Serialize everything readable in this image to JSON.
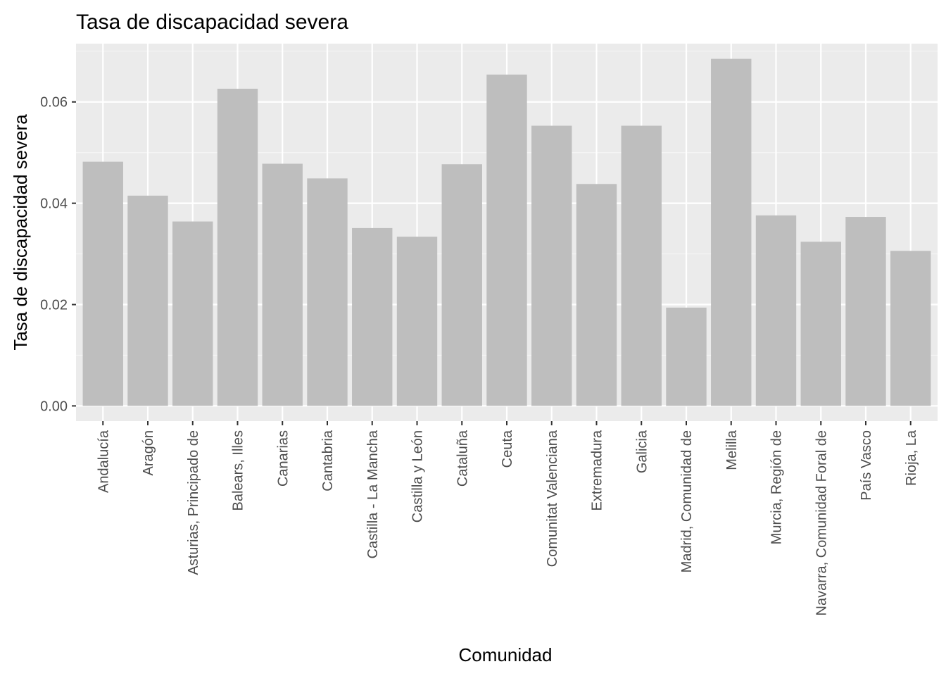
{
  "chart_data": {
    "type": "bar",
    "title": "Tasa de discapacidad severa",
    "xlabel": "Comunidad",
    "ylabel": "Tasa de discapacidad severa",
    "ylim": [
      -0.003,
      0.0715
    ],
    "yticks": [
      0.0,
      0.02,
      0.04,
      0.06
    ],
    "ytick_labels": [
      "0.00",
      "0.02",
      "0.04",
      "0.06"
    ],
    "categories": [
      "Andalucía",
      "Aragón",
      "Asturias, Principado de",
      "Balears, Illes",
      "Canarias",
      "Cantabria",
      "Castilla - La Mancha",
      "Castilla y León",
      "Cataluña",
      "Ceuta",
      "Comunitat Valenciana",
      "Extremadura",
      "Galicia",
      "Madrid, Comunidad de",
      "Melilla",
      "Murcia, Región de",
      "Navarra, Comunidad Foral de",
      "País Vasco",
      "Rioja, La"
    ],
    "values": [
      0.0482,
      0.0415,
      0.0364,
      0.0626,
      0.0478,
      0.0449,
      0.0351,
      0.0334,
      0.0477,
      0.0654,
      0.0553,
      0.0438,
      0.0553,
      0.0194,
      0.0685,
      0.0376,
      0.0324,
      0.0373,
      0.0306
    ],
    "grid": true,
    "colors": {
      "bar": "#bebebe",
      "panel": "#ebebeb",
      "grid_major": "#ffffff",
      "grid_minor": "#f5f5f5",
      "tick": "#333333"
    }
  }
}
